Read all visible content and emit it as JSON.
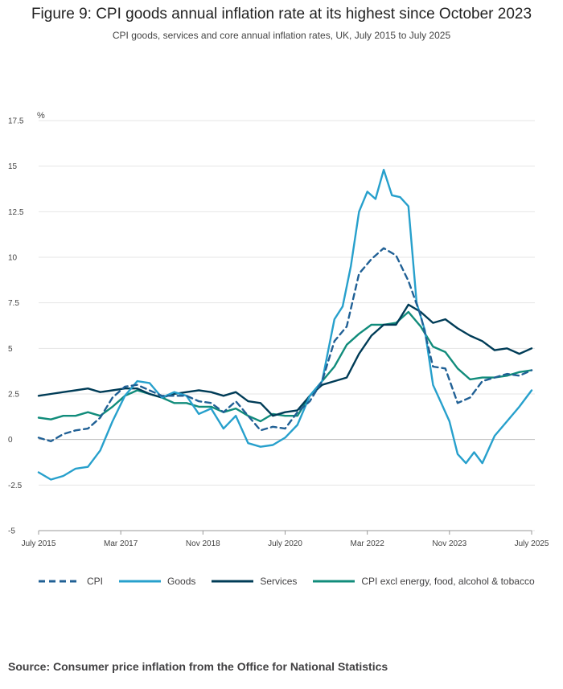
{
  "title": "Figure 9: CPI goods annual inflation rate at its highest since October 2023",
  "subtitle": "CPI goods, services and core annual inflation rates, UK, July 2015 to July 2025",
  "source": "Source: Consumer price inflation from the Office for National Statistics",
  "chart_data": {
    "type": "line",
    "title": "Figure 9: CPI goods annual inflation rate at its highest since October 2023",
    "ylabel": "%",
    "ylim": [
      -5,
      17.5
    ],
    "yticks": [
      -5,
      -2.5,
      0,
      2.5,
      5,
      7.5,
      10,
      12.5,
      15,
      17.5
    ],
    "ytick_labels": [
      "-5",
      "-2.5",
      "0",
      "2.5",
      "5",
      "7.5",
      "10",
      "12.5",
      "15",
      "17.5"
    ],
    "x_range_months": [
      0,
      120
    ],
    "xticks": [
      0,
      20,
      40,
      60,
      80,
      100,
      120
    ],
    "xtick_labels": [
      "July 2015",
      "Mar 2017",
      "Nov 2018",
      "July 2020",
      "Mar 2022",
      "Nov 2023",
      "July 2025"
    ],
    "x_unit_note": "x = months since July 2015",
    "series": [
      {
        "name": "CPI",
        "color": "#206095",
        "dash": true,
        "x": [
          0,
          3,
          6,
          9,
          12,
          15,
          18,
          21,
          24,
          27,
          30,
          33,
          36,
          39,
          42,
          45,
          48,
          51,
          54,
          57,
          60,
          63,
          66,
          69,
          72,
          75,
          78,
          81,
          84,
          87,
          90,
          93,
          96,
          99,
          102,
          105,
          108,
          111,
          114,
          117,
          120
        ],
        "values": [
          0.1,
          -0.1,
          0.3,
          0.5,
          0.6,
          1.2,
          2.3,
          2.9,
          3.0,
          2.7,
          2.4,
          2.4,
          2.4,
          2.1,
          2.0,
          1.5,
          2.1,
          1.3,
          0.5,
          0.7,
          0.6,
          1.5,
          2.1,
          3.2,
          5.4,
          6.2,
          9.1,
          9.9,
          10.5,
          10.1,
          8.7,
          6.8,
          4.0,
          3.9,
          2.0,
          2.3,
          3.2,
          3.4,
          3.6,
          3.5,
          3.8
        ]
      },
      {
        "name": "Goods",
        "color": "#27a0cc",
        "dash": false,
        "x": [
          0,
          3,
          6,
          9,
          12,
          15,
          18,
          21,
          24,
          27,
          30,
          33,
          36,
          39,
          42,
          45,
          48,
          51,
          54,
          57,
          60,
          63,
          66,
          69,
          72,
          74,
          76,
          78,
          80,
          82,
          84,
          86,
          88,
          90,
          92,
          94,
          96,
          98,
          100,
          102,
          104,
          106,
          108,
          111,
          114,
          117,
          120
        ],
        "values": [
          -1.8,
          -2.2,
          -2.0,
          -1.6,
          -1.5,
          -0.6,
          1.0,
          2.4,
          3.2,
          3.1,
          2.3,
          2.6,
          2.4,
          1.4,
          1.7,
          0.6,
          1.3,
          -0.2,
          -0.4,
          -0.3,
          0.1,
          0.8,
          2.4,
          3.2,
          6.6,
          7.3,
          9.5,
          12.5,
          13.6,
          13.2,
          14.8,
          13.4,
          13.3,
          12.8,
          7.5,
          6.0,
          3.0,
          2.0,
          1.0,
          -0.8,
          -1.3,
          -0.7,
          -1.3,
          0.2,
          1.0,
          1.8,
          2.7
        ]
      },
      {
        "name": "Services",
        "color": "#003c57",
        "dash": false,
        "x": [
          0,
          3,
          6,
          9,
          12,
          15,
          18,
          21,
          24,
          27,
          30,
          33,
          36,
          39,
          42,
          45,
          48,
          51,
          54,
          57,
          60,
          63,
          66,
          69,
          72,
          75,
          78,
          81,
          84,
          87,
          90,
          93,
          96,
          99,
          102,
          105,
          108,
          111,
          114,
          117,
          120
        ],
        "values": [
          2.4,
          2.5,
          2.6,
          2.7,
          2.8,
          2.6,
          2.7,
          2.8,
          2.8,
          2.5,
          2.3,
          2.5,
          2.6,
          2.7,
          2.6,
          2.4,
          2.6,
          2.1,
          2.0,
          1.3,
          1.5,
          1.6,
          2.4,
          3.0,
          3.2,
          3.4,
          4.7,
          5.7,
          6.3,
          6.3,
          7.4,
          7.0,
          6.4,
          6.6,
          6.1,
          5.7,
          5.4,
          4.9,
          5.0,
          4.7,
          5.0
        ]
      },
      {
        "name": "CPI excl energy, food, alcohol & tobacco",
        "color": "#118c7b",
        "dash": false,
        "x": [
          0,
          3,
          6,
          9,
          12,
          15,
          18,
          21,
          24,
          27,
          30,
          33,
          36,
          39,
          42,
          45,
          48,
          51,
          54,
          57,
          60,
          63,
          66,
          69,
          72,
          75,
          78,
          81,
          84,
          87,
          90,
          93,
          96,
          99,
          102,
          105,
          108,
          111,
          114,
          117,
          120
        ],
        "values": [
          1.2,
          1.1,
          1.3,
          1.3,
          1.5,
          1.3,
          1.8,
          2.4,
          2.7,
          2.5,
          2.3,
          2.0,
          2.0,
          1.8,
          1.8,
          1.5,
          1.7,
          1.3,
          1.0,
          1.4,
          1.3,
          1.3,
          2.4,
          3.2,
          4.0,
          5.2,
          5.8,
          6.3,
          6.3,
          6.4,
          7.0,
          6.2,
          5.1,
          4.8,
          3.9,
          3.3,
          3.4,
          3.4,
          3.5,
          3.7,
          3.8
        ]
      }
    ]
  }
}
